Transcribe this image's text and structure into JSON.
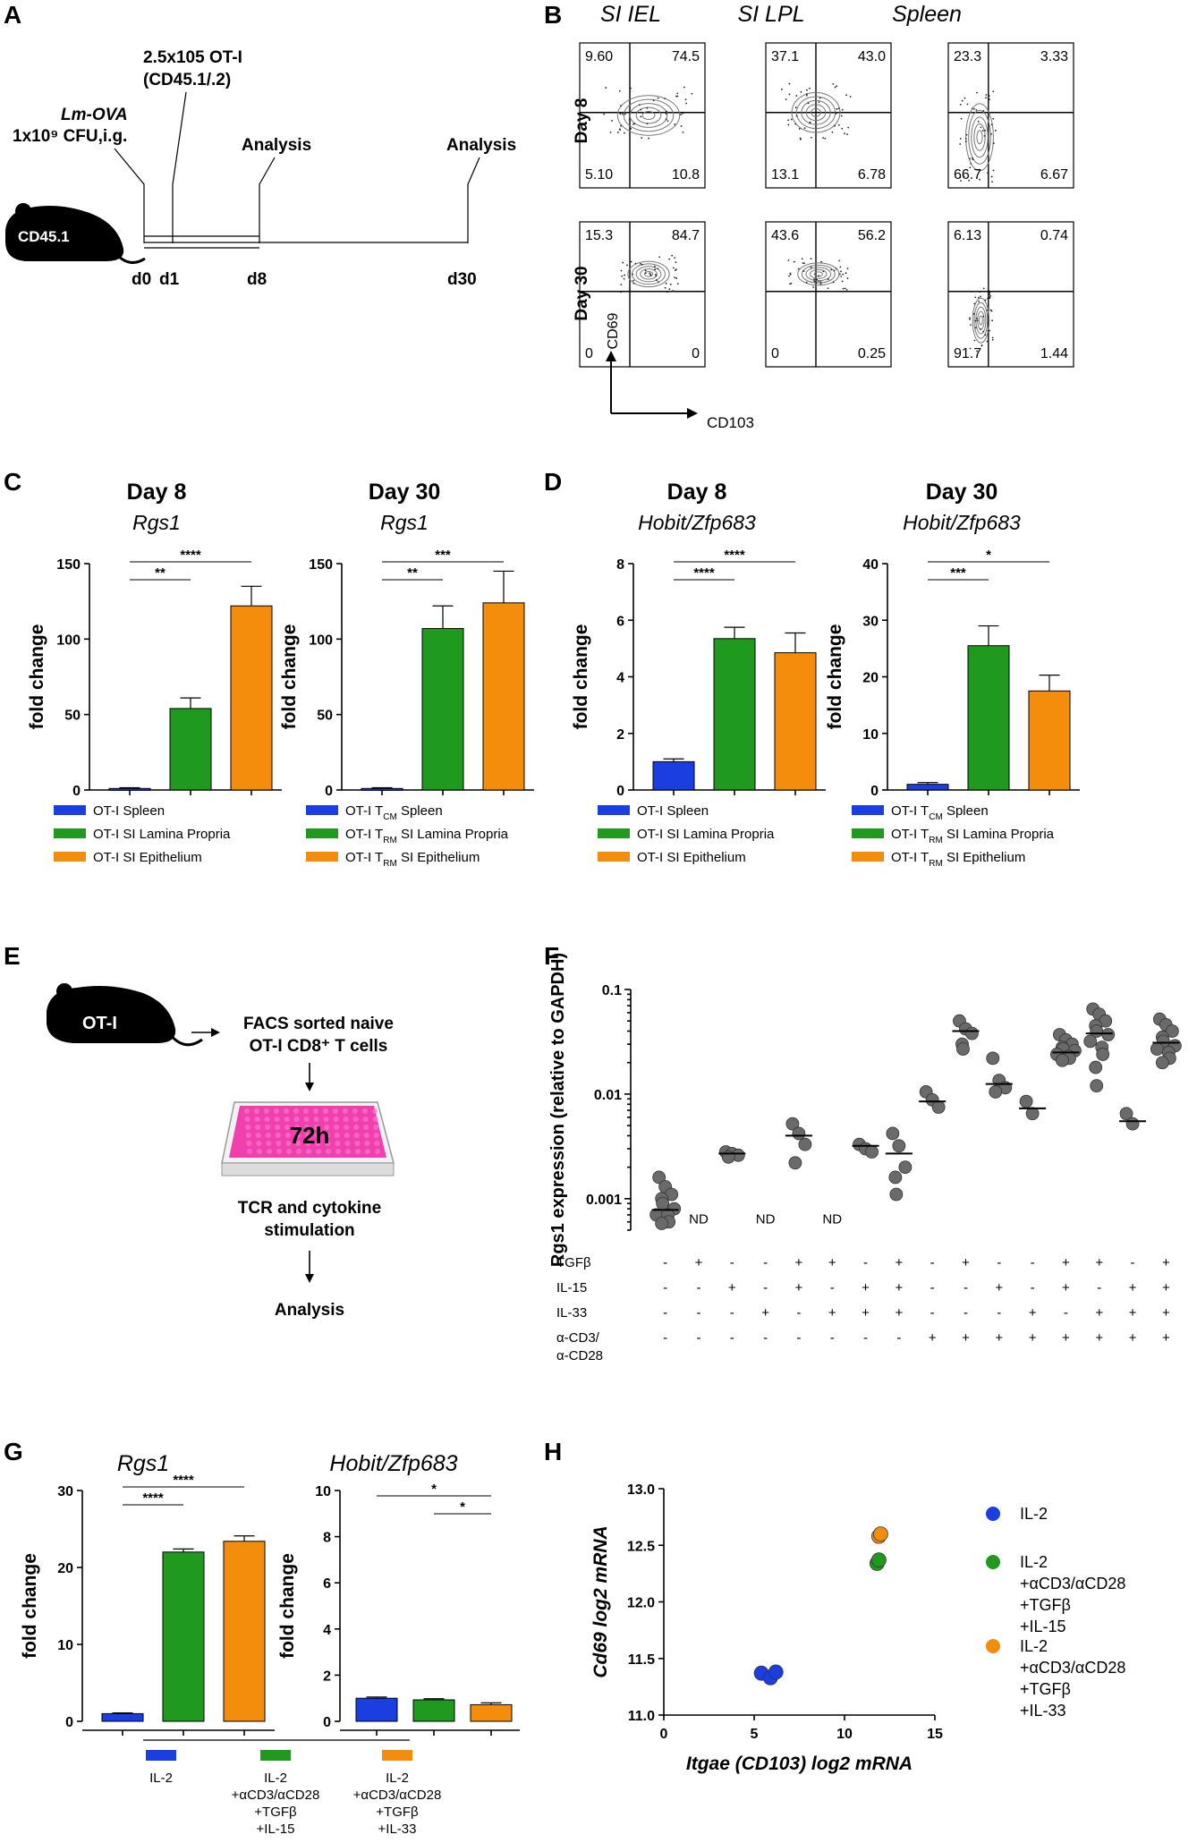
{
  "colors": {
    "blue": "#1a3ee0",
    "green": "#1f9a1f",
    "orange": "#f48c0c",
    "gray": "#6a6a6a"
  },
  "panel_letters": [
    "A",
    "B",
    "C",
    "D",
    "E",
    "F",
    "G",
    "H"
  ],
  "panelA": {
    "lm_ova": "Lm-OVA",
    "dose": "1x10⁹ CFU,i.g.",
    "transfer_line1": "2.5x105 OT-I",
    "transfer_line2": "(CD45.1/.2)",
    "analysis1": "Analysis",
    "analysis2": "Analysis",
    "mouse_label": "CD45.1",
    "days": [
      "d0",
      "d1",
      "d8",
      "d30"
    ]
  },
  "panelB": {
    "columns": [
      "SI IEL",
      "SI LPL",
      "Spleen"
    ],
    "rows": [
      "Day 8",
      "Day 30"
    ],
    "y_axis": "CD69",
    "x_axis": "CD103",
    "quadrants": [
      [
        [
          "9.60",
          "74.5",
          "5.10",
          "10.8"
        ],
        [
          "37.1",
          "43.0",
          "13.1",
          "6.78"
        ],
        [
          "23.3",
          "3.33",
          "66.7",
          "6.67"
        ]
      ],
      [
        [
          "15.3",
          "84.7",
          "0",
          "0"
        ],
        [
          "43.6",
          "56.2",
          "0",
          "0.25"
        ],
        [
          "6.13",
          "0.74",
          "91.7",
          "1.44"
        ]
      ]
    ]
  },
  "chart_data": [
    {
      "type": "bar",
      "panel": "C",
      "title": "Day 8",
      "subtitle": "Rgs1",
      "ylabel": "fold change",
      "ylim": [
        0,
        150
      ],
      "yticks": [
        0,
        50,
        100,
        150
      ],
      "categories": [
        "OT-I Spleen",
        "OT-I SI Lamina Propria",
        "OT-I SI Epithelium"
      ],
      "values": [
        1,
        54,
        122
      ],
      "errors": [
        0.5,
        7,
        13
      ],
      "significance": [
        {
          "label": "**",
          "from": 0,
          "to": 1
        },
        {
          "label": "****",
          "from": 0,
          "to": 2
        }
      ]
    },
    {
      "type": "bar",
      "panel": "C",
      "title": "Day 30",
      "subtitle": "Rgs1",
      "ylabel": "fold change",
      "ylim": [
        0,
        150
      ],
      "yticks": [
        0,
        50,
        100,
        150
      ],
      "categories": [
        "OT-I TCM Spleen",
        "OT-I TRM SI Lamina Propria",
        "OT-I TRM SI Epithelium"
      ],
      "values": [
        1,
        107,
        124
      ],
      "errors": [
        0.5,
        15,
        21
      ],
      "significance": [
        {
          "label": "**",
          "from": 0,
          "to": 1
        },
        {
          "label": "***",
          "from": 0,
          "to": 2
        }
      ]
    },
    {
      "type": "bar",
      "panel": "D",
      "title": "Day 8",
      "subtitle": "Hobit/Zfp683",
      "ylabel": "fold change",
      "ylim": [
        0,
        8
      ],
      "yticks": [
        0,
        2,
        4,
        6,
        8
      ],
      "categories": [
        "OT-I Spleen",
        "OT-I SI Lamina Propria",
        "OT-I SI Epithelium"
      ],
      "values": [
        1,
        5.35,
        4.85
      ],
      "errors": [
        0.1,
        0.4,
        0.7
      ],
      "significance": [
        {
          "label": "****",
          "from": 0,
          "to": 1
        },
        {
          "label": "****",
          "from": 0,
          "to": 2
        }
      ]
    },
    {
      "type": "bar",
      "panel": "D",
      "title": "Day 30",
      "subtitle": "Hobit/Zfp683",
      "ylabel": "fold change",
      "ylim": [
        0,
        40
      ],
      "yticks": [
        0,
        10,
        20,
        30,
        40
      ],
      "categories": [
        "OT-I TCM Spleen",
        "OT-I TRM SI Lamina Propria",
        "OT-I TRM SI Epithelium"
      ],
      "values": [
        1,
        25.5,
        17.5
      ],
      "errors": [
        0.3,
        3.5,
        2.8
      ],
      "significance": [
        {
          "label": "***",
          "from": 0,
          "to": 1
        },
        {
          "label": "*",
          "from": 0,
          "to": 2
        }
      ]
    },
    {
      "type": "scatter",
      "panel": "F",
      "ylabel": "Rgs1 expression (relative to GAPDH)",
      "yscale": "log",
      "ylim": [
        0.0005,
        0.1
      ],
      "yticks": [
        "0.001",
        "0.01",
        "0.1"
      ],
      "groups": [
        {
          "median": 0.00078,
          "points": [
            0.0016,
            0.0013,
            0.0011,
            0.001,
            0.0009,
            0.0008,
            0.0007,
            0.0007,
            0.0006,
            0.00058
          ]
        },
        {
          "median": null,
          "points": [],
          "nd": "ND"
        },
        {
          "median": 0.0027,
          "points": [
            0.0028,
            0.0027,
            0.0026,
            0.0025
          ]
        },
        {
          "median": null,
          "points": [],
          "nd": "ND"
        },
        {
          "median": 0.004,
          "points": [
            0.0052,
            0.0042,
            0.0033,
            0.0022
          ]
        },
        {
          "median": null,
          "points": [],
          "nd": "ND"
        },
        {
          "median": 0.0032,
          "points": [
            0.0033,
            0.003,
            0.0028
          ]
        },
        {
          "median": 0.0027,
          "points": [
            0.0042,
            0.0032,
            0.002,
            0.0016,
            0.0011
          ]
        },
        {
          "median": 0.0085,
          "points": [
            0.0105,
            0.0088,
            0.0075
          ]
        },
        {
          "median": 0.04,
          "points": [
            0.05,
            0.042,
            0.038,
            0.03,
            0.027
          ]
        },
        {
          "median": 0.0125,
          "points": [
            0.022,
            0.0135,
            0.0115,
            0.0105
          ]
        },
        {
          "median": 0.0073,
          "points": [
            0.0085,
            0.0065
          ]
        },
        {
          "median": 0.025,
          "points": [
            0.037,
            0.033,
            0.03,
            0.028,
            0.027,
            0.026,
            0.024,
            0.023,
            0.022,
            0.021
          ]
        },
        {
          "median": 0.038,
          "points": [
            0.065,
            0.058,
            0.05,
            0.045,
            0.04,
            0.037,
            0.032,
            0.028,
            0.024,
            0.018,
            0.012
          ]
        },
        {
          "median": 0.0055,
          "points": [
            0.0065,
            0.0052
          ]
        },
        {
          "median": 0.031,
          "points": [
            0.052,
            0.046,
            0.04,
            0.035,
            0.032,
            0.029,
            0.027,
            0.025,
            0.022,
            0.02
          ]
        }
      ],
      "conditions": [
        {
          "label": "TGFβ",
          "values": [
            "-",
            "+",
            "-",
            "-",
            "+",
            "+",
            "-",
            "+",
            "-",
            "+",
            "-",
            "-",
            "+",
            "+",
            "-",
            "+"
          ]
        },
        {
          "label": "IL-15",
          "values": [
            "-",
            "-",
            "+",
            "-",
            "+",
            "-",
            "+",
            "+",
            "-",
            "-",
            "+",
            "-",
            "+",
            "-",
            "+",
            "+"
          ]
        },
        {
          "label": "IL-33",
          "values": [
            "-",
            "-",
            "-",
            "+",
            "-",
            "+",
            "+",
            "+",
            "-",
            "-",
            "-",
            "+",
            "-",
            "+",
            "+",
            "+"
          ]
        },
        {
          "label": "α-CD3/",
          "label2": "α-CD28",
          "values": [
            "-",
            "-",
            "-",
            "-",
            "-",
            "-",
            "-",
            "-",
            "+",
            "+",
            "+",
            "+",
            "+",
            "+",
            "+",
            "+"
          ]
        }
      ]
    },
    {
      "type": "bar",
      "panel": "G",
      "title": "Rgs1",
      "ylabel": "fold change",
      "ylim": [
        0,
        30
      ],
      "yticks": [
        0,
        10,
        20,
        30
      ],
      "values": [
        1,
        22,
        23.4
      ],
      "errors": [
        0.1,
        0.4,
        0.7
      ],
      "significance": [
        {
          "label": "****",
          "from": 0,
          "to": 1
        },
        {
          "label": "****",
          "from": 0,
          "to": 2
        }
      ]
    },
    {
      "type": "bar",
      "panel": "G",
      "title": "Hobit/Zfp683",
      "ylabel": "fold change",
      "ylim": [
        0,
        10
      ],
      "yticks": [
        0,
        2,
        4,
        6,
        8,
        10
      ],
      "values": [
        1,
        0.93,
        0.72
      ],
      "errors": [
        0.05,
        0.05,
        0.08
      ],
      "significance": [
        {
          "label": "*",
          "from": 0,
          "to": 2
        },
        {
          "label": "*",
          "from": 1,
          "to": 2
        }
      ]
    },
    {
      "type": "scatter",
      "panel": "H",
      "xlabel": "Itgae (CD103) log2 mRNA",
      "ylabel": "Cd69 log2 mRNA",
      "xlim": [
        0,
        15
      ],
      "ylim": [
        11,
        13
      ],
      "xticks": [
        0,
        5,
        10,
        15
      ],
      "yticks": [
        "11.0",
        "11.5",
        "12.0",
        "12.5",
        "13.0"
      ],
      "series": [
        {
          "name": "IL-2",
          "color": "blue",
          "points": [
            [
              5.4,
              11.37
            ],
            [
              5.9,
              11.33
            ],
            [
              6.2,
              11.38
            ]
          ]
        },
        {
          "name": "IL-2 +αCD3/αCD28 +TGFβ +IL-15",
          "color": "green",
          "points": [
            [
              11.8,
              12.34
            ],
            [
              11.9,
              12.37
            ]
          ]
        },
        {
          "name": "IL-2 +αCD3/αCD28 +TGFβ +IL-33",
          "color": "orange",
          "points": [
            [
              11.9,
              12.58
            ],
            [
              12.0,
              12.6
            ]
          ]
        }
      ]
    }
  ],
  "legends": {
    "C_day8": [
      "OT-I Spleen",
      "OT-I SI Lamina Propria",
      "OT-I SI Epithelium"
    ],
    "C_day30": [
      [
        "OT-I T",
        "CM",
        " Spleen"
      ],
      [
        "OT-I T",
        "RM",
        " SI Lamina Propria"
      ],
      [
        "OT-I T",
        "RM",
        " SI Epithelium"
      ]
    ],
    "D_day8": [
      "OT-I Spleen",
      "OT-I SI Lamina Propria",
      "OT-I SI Epithelium"
    ],
    "D_day30": [
      [
        "OT-I T",
        "CM",
        " Spleen"
      ],
      [
        "OT-I T",
        "RM",
        " SI Lamina Propria"
      ],
      [
        "OT-I T",
        "RM",
        " SI Epithelium"
      ]
    ]
  },
  "panelE": {
    "mouse_label": "OT-I",
    "sort_line1": "FACS sorted naive",
    "sort_line2": "OT-I CD8⁺ T cells",
    "plate_label": "72h",
    "stim_line1": "TCR and cytokine",
    "stim_line2": "stimulation",
    "analysis": "Analysis"
  },
  "panelG_legend": [
    [
      "IL-2"
    ],
    [
      "IL-2",
      "+αCD3/αCD28",
      "+TGFβ",
      "+IL-15"
    ],
    [
      "IL-2",
      "+αCD3/αCD28",
      "+TGFβ",
      "+IL-33"
    ]
  ],
  "panelH_legend": [
    [
      "IL-2"
    ],
    [
      "IL-2",
      "+αCD3/αCD28",
      "+TGFβ",
      "+IL-15"
    ],
    [
      "IL-2",
      "+αCD3/αCD28",
      "+TGFβ",
      "+IL-33"
    ]
  ]
}
